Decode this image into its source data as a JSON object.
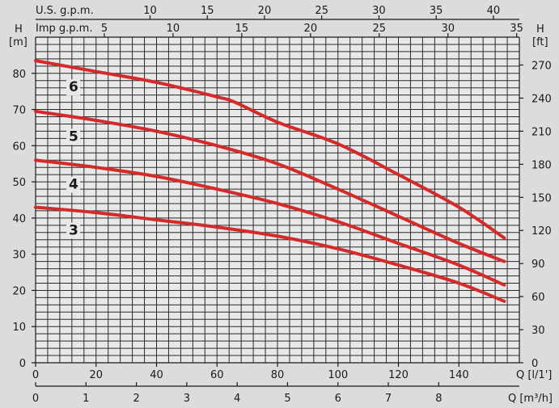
{
  "chart_data": {
    "type": "line",
    "title": "",
    "axes": {
      "left": {
        "unit_line1": "H",
        "unit_line2": "[m]",
        "range": [
          0,
          90
        ],
        "ticks": [
          0,
          10,
          20,
          30,
          40,
          50,
          60,
          70,
          80
        ]
      },
      "right": {
        "unit_line1": "H",
        "unit_line2": "[ft]",
        "ticks": [
          0,
          30,
          60,
          90,
          120,
          150,
          180,
          210,
          240,
          270
        ]
      },
      "bottom_1": {
        "label": "Q [l/1']",
        "range": [
          0,
          160
        ],
        "ticks": [
          0,
          20,
          40,
          60,
          80,
          100,
          120,
          140
        ]
      },
      "bottom_2": {
        "label": "Q [m³/h]",
        "ticks": [
          0,
          1,
          2,
          3,
          4,
          5,
          6,
          7,
          8
        ]
      },
      "top_1": {
        "label": "U.S. g.p.m.",
        "ticks": [
          10,
          15,
          20,
          25,
          30,
          35,
          40
        ]
      },
      "top_2": {
        "label": "Imp g.p.m.",
        "ticks": [
          5,
          10,
          15,
          20,
          25,
          30,
          35
        ]
      }
    },
    "grid": true,
    "series": [
      {
        "name": "6",
        "color": "#d42a2a",
        "x": [
          0,
          20,
          40,
          60,
          66,
          80,
          100,
          120,
          140,
          155
        ],
        "y": [
          83.5,
          80.5,
          77.5,
          73.5,
          72,
          66.5,
          60.5,
          52,
          43,
          34.5
        ]
      },
      {
        "name": "5",
        "color": "#d42a2a",
        "x": [
          0,
          20,
          40,
          60,
          80,
          100,
          120,
          140,
          155
        ],
        "y": [
          69.5,
          67,
          64,
          60,
          55,
          48,
          40.5,
          33,
          28
        ]
      },
      {
        "name": "4",
        "color": "#d42a2a",
        "x": [
          0,
          20,
          40,
          60,
          80,
          100,
          120,
          140,
          155
        ],
        "y": [
          56,
          54,
          51.5,
          48,
          44,
          39,
          33,
          27,
          21.5
        ]
      },
      {
        "name": "3",
        "color": "#d42a2a",
        "x": [
          0,
          20,
          40,
          60,
          80,
          100,
          120,
          140,
          155
        ],
        "y": [
          43,
          41.5,
          39.5,
          37.5,
          35,
          31.5,
          27,
          22,
          17
        ]
      }
    ]
  }
}
